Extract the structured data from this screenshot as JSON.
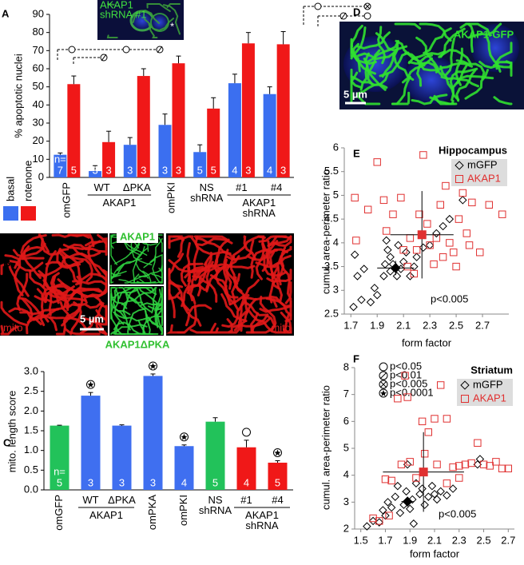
{
  "panels": [
    "A",
    "B",
    "C",
    "D",
    "E",
    "F"
  ],
  "images": {
    "a_inset": [
      "AKAP1",
      "shRNA #1"
    ],
    "a_inset_mark": "*",
    "b_top_label": "AKAP1",
    "b_bottom_label": "AKAP1ΔPKA",
    "b_mito": "mito",
    "b_scale": "5 µm",
    "d_label": "AKAP1-GFP",
    "d_scale": "5 µm"
  },
  "chart_data": [
    {
      "type": "bar",
      "ylabel": "% apoptotic nuclei",
      "categories": [
        "omGFP",
        "WT",
        "ΔPKA",
        "omPKI",
        "NS shRNA",
        "#1",
        "#4"
      ],
      "group_labels": [
        "AKAP1",
        "AKAP1 shRNA"
      ],
      "n_prefix": "n=",
      "ylim": [
        0,
        90
      ],
      "yticks": [
        0,
        10,
        20,
        30,
        40,
        50,
        60,
        70,
        80,
        90
      ],
      "series": [
        {
          "name": "basal",
          "color": "#3b6ff0",
          "values": [
            12.5,
            3.5,
            18,
            29,
            14,
            52,
            46
          ],
          "errors": [
            1,
            3,
            4,
            6,
            4,
            5,
            4
          ],
          "n": [
            "7",
            "3",
            "3",
            "3",
            "5",
            "4",
            "4"
          ]
        },
        {
          "name": "rotenone",
          "color": "#f01818",
          "values": [
            51.5,
            19.5,
            56,
            63,
            38,
            74,
            73.5
          ],
          "errors": [
            4.5,
            6,
            4,
            4,
            6,
            6,
            7
          ],
          "n": [
            "5",
            "3",
            "3",
            "3",
            "5",
            "3",
            "3"
          ]
        }
      ]
    },
    {
      "type": "bar",
      "ylabel": "mito. length score",
      "categories": [
        "omGFP",
        "WT",
        "ΔPKA",
        "omPKA",
        "omPKI",
        "NS shRNA",
        "#1",
        "#4"
      ],
      "group_labels": [
        "AKAP1",
        "AKAP1 shRNA"
      ],
      "n_prefix": "n=",
      "ylim": [
        0,
        3
      ],
      "yticks": [
        {
          "value": 0,
          "label": "0.0"
        },
        0.5,
        {
          "value": 1,
          "label": "1.0"
        },
        1.5,
        {
          "value": 2,
          "label": "2.0"
        },
        2.5,
        {
          "value": 3,
          "label": "3.0"
        }
      ],
      "significance_legend": [
        "p<0.05",
        "p<0.01",
        "p<0.005",
        "p<0.0001"
      ],
      "series": [
        {
          "colors": [
            "#22c25a",
            "#3f6ff0",
            "#3f6ff0",
            "#3f6ff0",
            "#3f6ff0",
            "#22c25a",
            "#f01818",
            "#f01818"
          ],
          "values": [
            1.63,
            2.39,
            1.63,
            2.89,
            1.11,
            1.73,
            1.08,
            0.69
          ],
          "errors": [
            0.01,
            0.08,
            0.02,
            0.05,
            0.03,
            0.1,
            0.18,
            0.05
          ],
          "n": [
            "5",
            "3",
            "3",
            "3",
            "4",
            "5",
            "4",
            "5"
          ]
        }
      ]
    },
    {
      "type": "scatter",
      "title": "Hippocampus",
      "xlabel": "form factor",
      "ylabel": "cumul. area-perimeter ratio",
      "annotation": "p<0.005",
      "xlim": [
        1.65,
        2.9
      ],
      "xticks": [
        1.7,
        1.9,
        2.1,
        2.3,
        2.5,
        2.7
      ],
      "ylim": [
        2.5,
        6
      ],
      "yticks": [
        2.5,
        3,
        3.5,
        4,
        4.5,
        5,
        5.5,
        6
      ],
      "series": [
        {
          "name": "mGFP",
          "color": "#000000",
          "marker": "diamond",
          "x": [
            1.72,
            1.78,
            1.85,
            1.9,
            1.88,
            1.75,
            1.8,
            1.73,
            1.95,
            1.96,
            2.0,
            1.98,
            1.97,
            2.02,
            2.05,
            2.08,
            2.1,
            2.12,
            2.15,
            2.18,
            2.2,
            2.25,
            2.3,
            2.35,
            2.4,
            2.45,
            2.55,
            2.0,
            2.06
          ],
          "y": [
            2.65,
            2.8,
            2.75,
            2.9,
            3.05,
            3.3,
            3.45,
            3.75,
            3.3,
            3.55,
            3.4,
            3.85,
            4.05,
            3.55,
            3.3,
            3.45,
            3.6,
            3.8,
            3.3,
            3.5,
            3.7,
            3.9,
            3.95,
            4.2,
            4.35,
            4.5,
            4.9,
            3.7,
            3.95
          ],
          "mean_x": 2.04,
          "mean_y": 3.47,
          "err_x": 0.14,
          "err_y": 0.15
        },
        {
          "name": "AKAP1",
          "color": "#e03030",
          "marker": "square",
          "x": [
            1.73,
            1.74,
            1.83,
            1.9,
            1.95,
            1.97,
            2.02,
            2.08,
            2.1,
            2.13,
            2.15,
            2.2,
            2.22,
            2.25,
            2.28,
            2.3,
            2.33,
            2.35,
            2.38,
            2.4,
            2.42,
            2.45,
            2.48,
            2.5,
            2.52,
            2.55,
            2.58,
            2.62,
            2.68,
            2.75,
            2.85,
            2.6,
            2.18
          ],
          "y": [
            4.95,
            4.05,
            4.7,
            5.7,
            4.9,
            4.25,
            4.6,
            4.95,
            3.85,
            3.5,
            4.1,
            3.85,
            4.6,
            5.85,
            4.4,
            3.95,
            3.55,
            4.1,
            4.8,
            3.7,
            5.2,
            4.0,
            3.8,
            3.5,
            4.5,
            5.05,
            4.2,
            4.85,
            3.8,
            4.8,
            4.6,
            3.95,
            3.35
          ],
          "mean_x": 2.24,
          "mean_y": 4.17,
          "err_x": 0.24,
          "err_y": 0.92
        }
      ]
    },
    {
      "type": "scatter",
      "title": "Striatum",
      "xlabel": "form factor",
      "ylabel": "cumul. area-perimeter ratio",
      "annotation": "p<0.005",
      "xlim": [
        1.45,
        2.75
      ],
      "xticks": [
        1.5,
        1.7,
        1.9,
        2.1,
        2.3,
        2.5,
        2.7
      ],
      "ylim": [
        2,
        8
      ],
      "yticks": [
        2,
        3,
        4,
        5,
        6,
        7,
        8
      ],
      "series": [
        {
          "name": "mGFP",
          "color": "#000000",
          "marker": "diamond",
          "x": [
            1.55,
            1.6,
            1.65,
            1.7,
            1.72,
            1.75,
            1.78,
            1.8,
            1.82,
            1.85,
            1.87,
            1.88,
            1.9,
            1.92,
            1.95,
            1.98,
            2.0,
            2.02,
            2.05,
            2.08,
            2.1,
            2.12,
            2.15,
            2.2,
            2.25,
            2.45,
            2.47,
            1.68,
            1.93
          ],
          "y": [
            2.1,
            2.3,
            2.25,
            2.5,
            3.0,
            2.8,
            3.2,
            3.6,
            2.6,
            2.9,
            3.4,
            4.4,
            2.75,
            3.1,
            3.7,
            3.3,
            3.5,
            2.9,
            3.2,
            3.6,
            3.3,
            3.1,
            3.4,
            3.25,
            3.5,
            4.4,
            4.6,
            2.7,
            2.2
          ],
          "mean_x": 1.88,
          "mean_y": 3.02,
          "err_x": 0.05,
          "err_y": 0.1
        },
        {
          "name": "AKAP1",
          "color": "#e03030",
          "marker": "square",
          "x": [
            1.6,
            1.65,
            1.7,
            1.73,
            1.75,
            1.8,
            1.83,
            1.86,
            1.88,
            1.9,
            1.95,
            2.0,
            2.02,
            2.05,
            2.1,
            2.12,
            2.15,
            2.2,
            2.25,
            2.3,
            2.35,
            2.4,
            2.45,
            2.5,
            2.55,
            2.6,
            2.65,
            2.7,
            2.2,
            2.3
          ],
          "y": [
            2.4,
            2.3,
            3.85,
            2.5,
            3.8,
            6.85,
            4.4,
            7.7,
            6.9,
            4.5,
            3.9,
            6.0,
            4.8,
            5.6,
            6.1,
            4.4,
            7.35,
            6.1,
            4.3,
            3.9,
            4.4,
            4.45,
            5.2,
            4.4,
            4.35,
            4.5,
            4.25,
            4.25,
            3.7,
            4.35
          ],
          "mean_x": 2.01,
          "mean_y": 4.12,
          "err_x": 0.33,
          "err_y": 1.48
        }
      ]
    }
  ]
}
